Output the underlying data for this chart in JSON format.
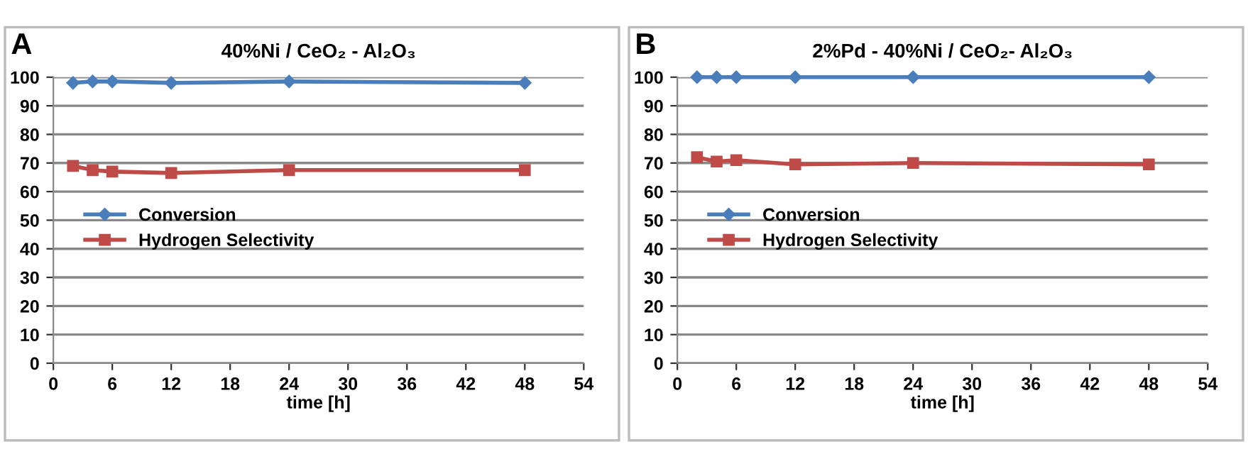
{
  "chart_data": [
    {
      "type": "line",
      "title": "40%Ni / CeO₂ - Al₂O₃",
      "xlabel": "time [h]",
      "annotations": [
        "A"
      ],
      "x": [
        2,
        4,
        6,
        12,
        24,
        48
      ],
      "series": [
        {
          "name": "Conversion",
          "color": "#4a7ebb",
          "marker": "diamond",
          "values": [
            98,
            98.5,
            98.5,
            98,
            98.5,
            98
          ]
        },
        {
          "name": "Hydrogen Selectivity",
          "color": "#be4b48",
          "marker": "square",
          "values": [
            69,
            67.5,
            67,
            66.5,
            67.5,
            67.5
          ]
        }
      ],
      "xlim": [
        0,
        54
      ],
      "xticks": [
        0,
        6,
        12,
        18,
        24,
        30,
        36,
        42,
        48,
        54
      ],
      "ylim": [
        0,
        100
      ],
      "yticks": [
        0,
        10,
        20,
        30,
        40,
        50,
        60,
        70,
        80,
        90,
        100
      ],
      "grid": "y",
      "legend": "left",
      "line_style": "solid"
    },
    {
      "type": "line",
      "title": "2%Pd - 40%Ni / CeO₂- Al₂O₃",
      "xlabel": "time [h]",
      "annotations": [
        "B"
      ],
      "x": [
        2,
        4,
        6,
        12,
        24,
        48
      ],
      "series": [
        {
          "name": "Conversion",
          "color": "#4a7ebb",
          "marker": "diamond",
          "values": [
            100,
            100,
            100,
            100,
            100,
            100
          ]
        },
        {
          "name": "Hydrogen Selectivity",
          "color": "#be4b48",
          "marker": "square",
          "values": [
            72,
            70.5,
            71,
            69.5,
            70,
            69.5
          ]
        }
      ],
      "xlim": [
        0,
        54
      ],
      "xticks": [
        0,
        6,
        12,
        18,
        24,
        30,
        36,
        42,
        48,
        54
      ],
      "ylim": [
        0,
        100
      ],
      "yticks": [
        0,
        10,
        20,
        30,
        40,
        50,
        60,
        70,
        80,
        90,
        100
      ],
      "grid": "y",
      "legend": "left",
      "line_style": "solid"
    }
  ]
}
